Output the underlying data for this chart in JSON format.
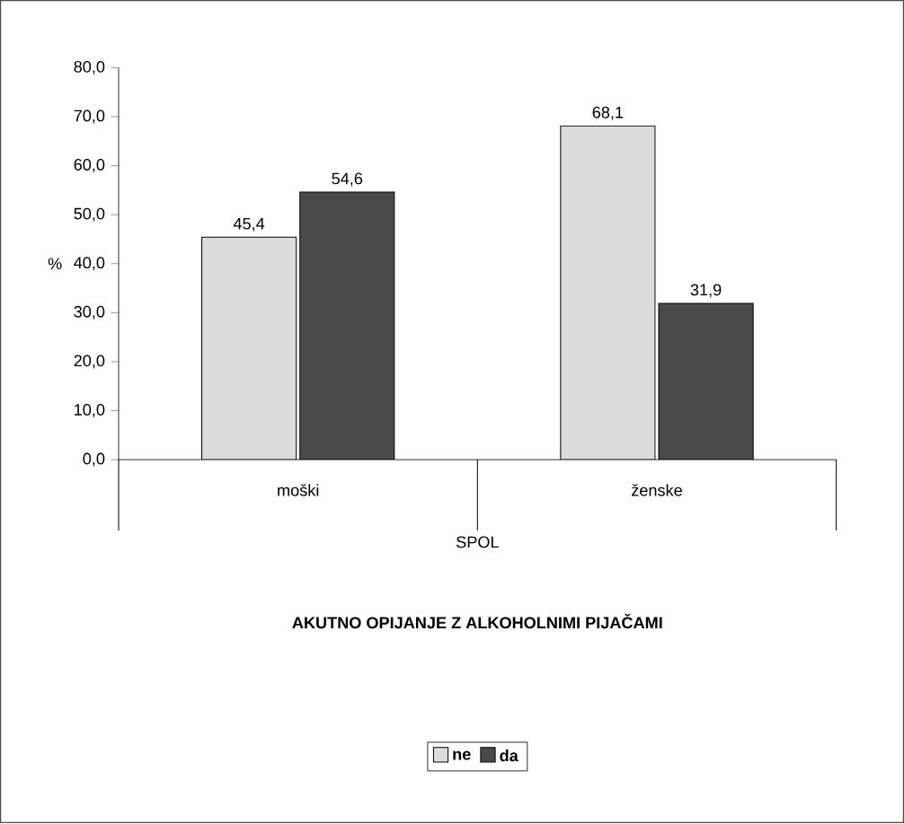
{
  "chart_data": {
    "type": "bar",
    "title": "AKUTNO OPIJANJE Z ALKOHOLNIMI PIJAČAMI",
    "xlabel": "SPOL",
    "ylabel": "%",
    "categories": [
      "moški",
      "ženske"
    ],
    "series": [
      {
        "name": "ne",
        "color": "#dcdcdc",
        "values": [
          45.4,
          68.1
        ],
        "value_labels": [
          "45,4",
          "68,1"
        ]
      },
      {
        "name": "da",
        "color": "#4a4a4a",
        "values": [
          54.6,
          31.9
        ],
        "value_labels": [
          "54,6",
          "31,9"
        ]
      }
    ],
    "ylim": [
      0,
      80
    ],
    "yticks": [
      {
        "value": 0,
        "label": "0,0"
      },
      {
        "value": 10,
        "label": "10,0"
      },
      {
        "value": 20,
        "label": "20,0"
      },
      {
        "value": 30,
        "label": "30,0"
      },
      {
        "value": 40,
        "label": "40,0"
      },
      {
        "value": 50,
        "label": "50,0"
      },
      {
        "value": 60,
        "label": "60,0"
      },
      {
        "value": 70,
        "label": "70,0"
      },
      {
        "value": 80,
        "label": "80,0"
      }
    ],
    "legend": "bottom",
    "grid": false
  }
}
